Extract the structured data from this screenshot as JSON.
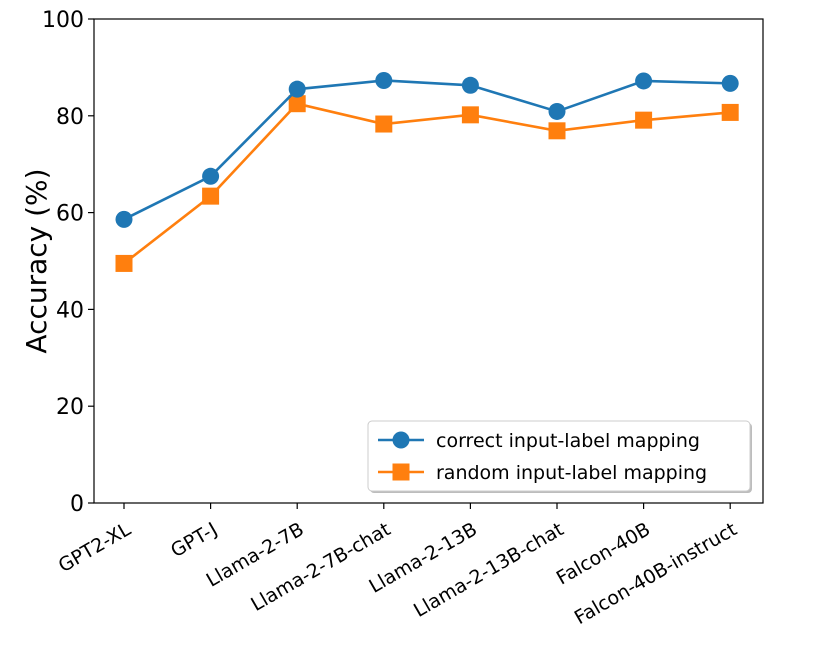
{
  "chart_data": {
    "type": "line",
    "categories": [
      "GPT2-XL",
      "GPT-J",
      "Llama-2-7B",
      "Llama-2-7B-chat",
      "Llama-2-13B",
      "Llama-2-13B-chat",
      "Falcon-40B",
      "Falcon-40B-instruct"
    ],
    "series": [
      {
        "name": "correct input-label mapping",
        "color": "#1f77b4",
        "marker": "circle",
        "values": [
          58.6,
          67.5,
          85.5,
          87.3,
          86.3,
          80.9,
          87.2,
          86.7
        ]
      },
      {
        "name": "random input-label mapping",
        "color": "#ff7f0e",
        "marker": "square",
        "values": [
          49.5,
          63.4,
          82.5,
          78.3,
          80.2,
          76.9,
          79.1,
          80.7
        ]
      }
    ],
    "xlabel": "",
    "ylabel": "Accuracy (%)",
    "ylim": [
      0,
      100
    ],
    "yticks": [
      0,
      20,
      40,
      60,
      80,
      100
    ],
    "ytick_labels": [
      "0",
      "20",
      "40",
      "60",
      "80",
      "100"
    ],
    "grid": false,
    "legend_position": "lower-right"
  }
}
